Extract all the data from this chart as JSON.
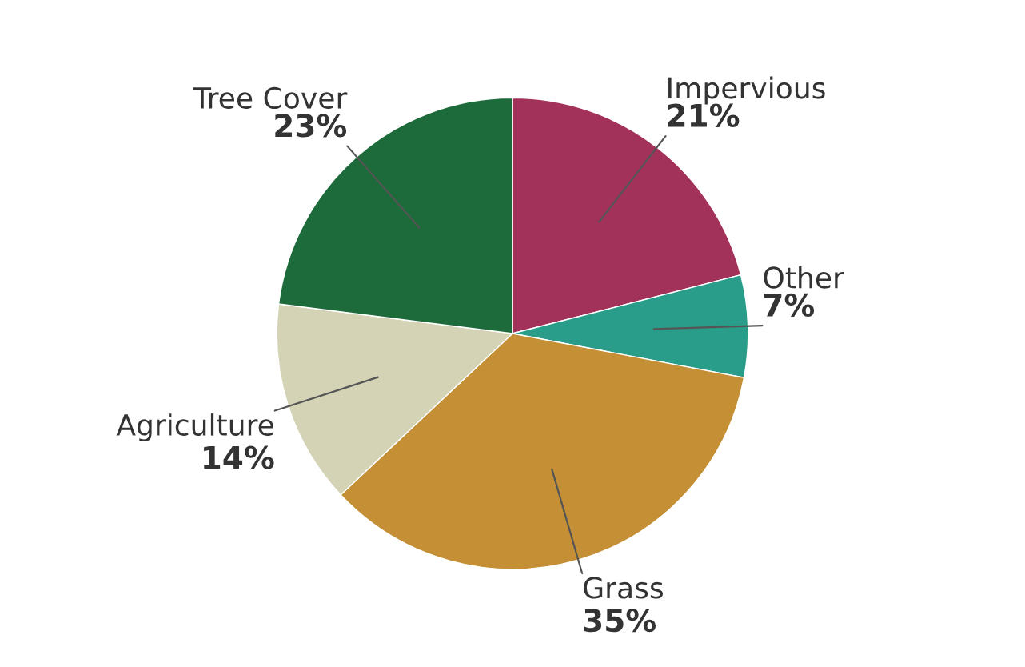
{
  "chart_data": {
    "type": "pie",
    "categories": [
      "Impervious",
      "Other",
      "Grass",
      "Agriculture",
      "Tree Cover"
    ],
    "values": [
      21,
      7,
      35,
      14,
      23
    ],
    "value_labels": [
      "21%",
      "7%",
      "35%",
      "14%",
      "23%"
    ],
    "colors": [
      "#a3325a",
      "#2a9d8a",
      "#c48f35",
      "#d4d3b5",
      "#1d6b3a"
    ]
  }
}
